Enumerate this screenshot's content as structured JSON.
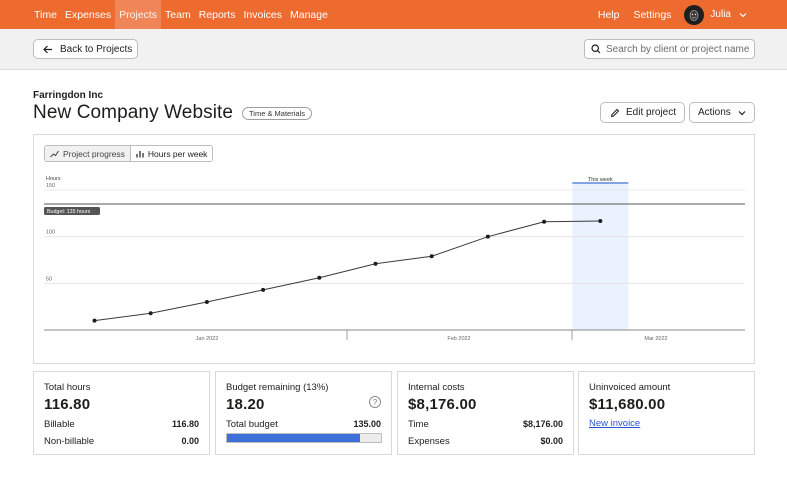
{
  "nav": {
    "items": [
      {
        "label": "Time",
        "active": false
      },
      {
        "label": "Expenses",
        "active": false
      },
      {
        "label": "Projects",
        "active": true
      },
      {
        "label": "Team",
        "active": false
      },
      {
        "label": "Reports",
        "active": false
      },
      {
        "label": "Invoices",
        "active": false
      },
      {
        "label": "Manage",
        "active": false
      }
    ],
    "help": "Help",
    "settings": "Settings",
    "user": "Julia"
  },
  "subbar": {
    "back_label": "Back to Projects",
    "search_placeholder": "Search by client or project name"
  },
  "project": {
    "client": "Farringdon Inc",
    "name": "New Company Website",
    "type_badge": "Time & Materials",
    "edit_label": "Edit project",
    "actions_label": "Actions"
  },
  "chart_toggle": {
    "progress_label": "Project progress",
    "hours_label": "Hours per week"
  },
  "chart_data": {
    "type": "line",
    "ylabel": "Hours",
    "ylim": [
      0,
      150
    ],
    "yticks": [
      50,
      100,
      150
    ],
    "x_weeks": [
      0,
      1,
      2,
      3,
      4,
      5,
      6,
      7,
      8,
      9
    ],
    "values": [
      10,
      18,
      30,
      43,
      56,
      71,
      79,
      100,
      116,
      116.8
    ],
    "budget": 135,
    "budget_label": "Budget: 135 hours",
    "this_week_label": "This week",
    "this_week_index": 9,
    "x_tick_labels": [
      "Jan 2022",
      "Feb 2022",
      "Mar 2022"
    ],
    "grid": true
  },
  "stats": {
    "total_hours": {
      "label": "Total hours",
      "value": "116.80",
      "billable_label": "Billable",
      "billable": "116.80",
      "nonbillable_label": "Non-billable",
      "nonbillable": "0.00"
    },
    "budget": {
      "label": "Budget remaining (13%)",
      "value": "18.20",
      "total_label": "Total budget",
      "total": "135.00",
      "used_fraction": 0.865,
      "help": "?"
    },
    "internal": {
      "label": "Internal costs",
      "value": "$8,176.00",
      "time_label": "Time",
      "time": "$8,176.00",
      "expenses_label": "Expenses",
      "expenses": "$0.00"
    },
    "uninvoiced": {
      "label": "Uninvoiced amount",
      "value": "$11,680.00",
      "link": "New invoice"
    }
  },
  "colors": {
    "brand": "#ed6b2f",
    "progress": "#3f6fd8",
    "this_week": "#eaf2fd",
    "this_week_line": "#3d70d6"
  }
}
